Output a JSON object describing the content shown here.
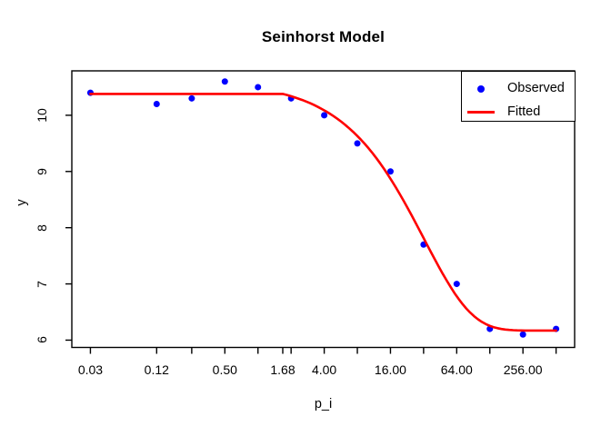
{
  "chart_data": {
    "type": "scatter",
    "title": "Seinhorst Model",
    "xlabel": "p_i",
    "ylabel": "y",
    "x_scale": "log2",
    "xlim_log2": [
      -5.62,
      9.56
    ],
    "ylim": [
      5.87,
      10.79
    ],
    "grid": false,
    "background_color": "#ffffff",
    "axis_color": "#000000",
    "x_ticks": [
      {
        "value": 0.03,
        "label": "0.03"
      },
      {
        "value": 0.12,
        "label": "0.12"
      },
      {
        "value": 0.25,
        "label": ""
      },
      {
        "value": 0.5,
        "label": "0.50"
      },
      {
        "value": 1,
        "label": ""
      },
      {
        "value": 1.68,
        "label": "1.68"
      },
      {
        "value": 2,
        "label": ""
      },
      {
        "value": 4,
        "label": "4.00"
      },
      {
        "value": 8,
        "label": ""
      },
      {
        "value": 16,
        "label": "16.00"
      },
      {
        "value": 32,
        "label": ""
      },
      {
        "value": 64,
        "label": "64.00"
      },
      {
        "value": 128,
        "label": ""
      },
      {
        "value": 256,
        "label": "256.00"
      },
      {
        "value": 512,
        "label": ""
      }
    ],
    "y_ticks": [
      {
        "value": 6,
        "label": "6"
      },
      {
        "value": 7,
        "label": "7"
      },
      {
        "value": 8,
        "label": "8"
      },
      {
        "value": 9,
        "label": "9"
      },
      {
        "value": 10,
        "label": "10"
      }
    ],
    "series": [
      {
        "name": "Observed",
        "kind": "points",
        "color": "#0000ff",
        "point_radius": 3.5,
        "points": [
          [
            0.03,
            10.4
          ],
          [
            0.12,
            10.2
          ],
          [
            0.25,
            10.3
          ],
          [
            0.5,
            10.6
          ],
          [
            1,
            10.5
          ],
          [
            2,
            10.3
          ],
          [
            4,
            10.0
          ],
          [
            8,
            9.5
          ],
          [
            16,
            9.0
          ],
          [
            32,
            7.7
          ],
          [
            64,
            7.0
          ],
          [
            128,
            6.2
          ],
          [
            256,
            6.1
          ],
          [
            512,
            6.2
          ]
        ]
      },
      {
        "name": "Fitted",
        "kind": "line",
        "color": "#ff0000",
        "line_width": 2.6,
        "model": "seinhorst",
        "params": {
          "y_max": 10.38,
          "y_min": 6.17,
          "T": 1.68,
          "z": 0.9695
        },
        "x_range": [
          0.03,
          512
        ]
      }
    ],
    "legend": {
      "position": "topright",
      "entries": [
        {
          "label": "Observed",
          "marker": "point",
          "color": "#0000ff"
        },
        {
          "label": "Fitted",
          "marker": "line",
          "color": "#ff0000"
        }
      ]
    }
  }
}
